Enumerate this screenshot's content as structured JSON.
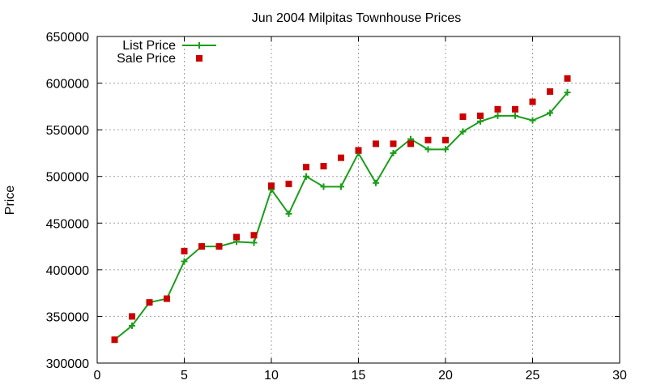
{
  "chart_data": {
    "type": "line",
    "title": "Jun 2004 Milpitas Townhouse Prices",
    "xlabel": "",
    "ylabel": "Price",
    "xlim": [
      0,
      30
    ],
    "ylim": [
      300000,
      650000
    ],
    "x_ticks": [
      0,
      5,
      10,
      15,
      20,
      25,
      30
    ],
    "y_ticks": [
      300000,
      350000,
      400000,
      450000,
      500000,
      550000,
      600000,
      650000
    ],
    "grid": true,
    "legend_position": "top-left",
    "series": [
      {
        "name": "List Price",
        "style": "line+cross",
        "color": "#1a9e1a",
        "x": [
          1,
          2,
          3,
          4,
          5,
          6,
          7,
          8,
          9,
          10,
          11,
          12,
          13,
          14,
          15,
          16,
          17,
          18,
          19,
          20,
          21,
          22,
          23,
          24,
          25,
          26,
          27
        ],
        "y": [
          325000,
          340000,
          365000,
          369000,
          409000,
          425000,
          425000,
          430000,
          429000,
          486000,
          460000,
          500000,
          489000,
          489000,
          525000,
          493000,
          525000,
          540000,
          529000,
          529000,
          548000,
          559000,
          565000,
          565000,
          560000,
          568000,
          590000
        ]
      },
      {
        "name": "Sale Price",
        "style": "square",
        "color": "#cc0000",
        "x": [
          1,
          2,
          3,
          4,
          5,
          6,
          7,
          8,
          9,
          10,
          11,
          12,
          13,
          14,
          15,
          16,
          17,
          18,
          19,
          20,
          21,
          22,
          23,
          24,
          25,
          26,
          27
        ],
        "y": [
          325000,
          350000,
          365000,
          369000,
          420000,
          425000,
          425000,
          435000,
          437000,
          490000,
          492000,
          510000,
          511000,
          520000,
          528000,
          535000,
          535000,
          535000,
          539000,
          539000,
          564000,
          565000,
          572000,
          572000,
          580000,
          591000,
          605000
        ]
      }
    ]
  }
}
